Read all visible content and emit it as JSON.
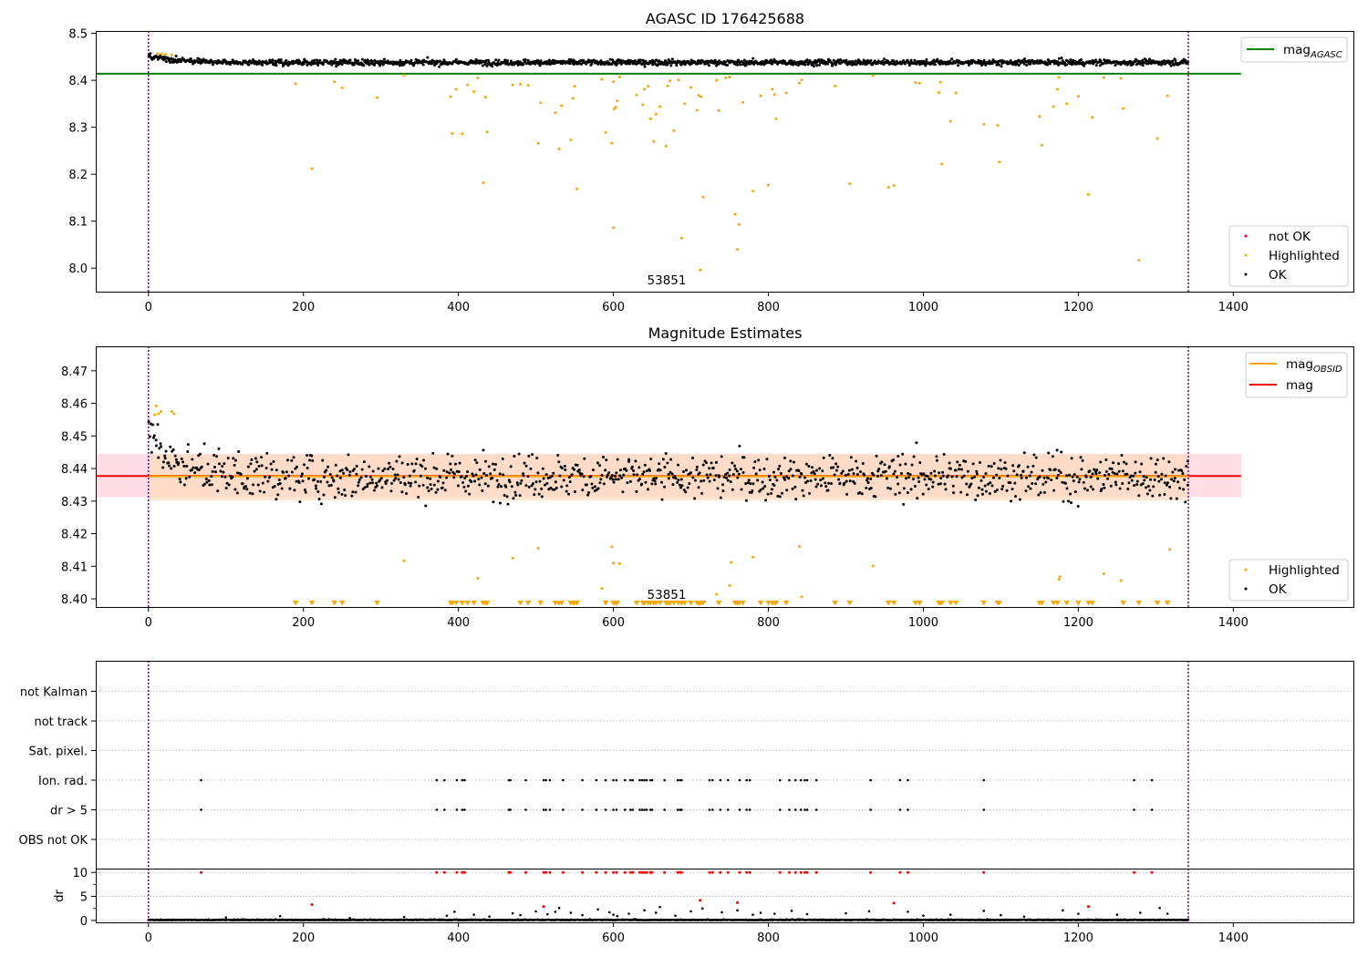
{
  "colors": {
    "ok": "#000000",
    "highlighted": "#ffa500",
    "not_ok": "#ff0000",
    "mag_agasc_line": "#008000",
    "mag_line": "#ff0000",
    "mag_obsid_line": "#ffa500",
    "obs_boundary": "#800080",
    "band_mag": "#ffc0cb",
    "band_obsid": "#ffdab9",
    "grid": "#b0b0b0"
  },
  "chart_data": [
    {
      "type": "scatter",
      "title": "AGASC ID 176425688",
      "xlabel": "",
      "ylabel": "",
      "xlim": [
        -68,
        1555
      ],
      "ylim": [
        7.95,
        8.505
      ],
      "xticks": [
        0,
        200,
        400,
        600,
        800,
        1000,
        1200,
        1400
      ],
      "xtick_labels": [
        "0",
        "200",
        "400",
        "600",
        "800",
        "1000",
        "1200",
        "1400"
      ],
      "yticks": [
        8.0,
        8.1,
        8.2,
        8.3,
        8.4,
        8.5
      ],
      "ytick_labels": [
        "8.0",
        "8.1",
        "8.2",
        "8.3",
        "8.4",
        "8.5"
      ],
      "obs_boundaries": [
        0,
        1342
      ],
      "obsid_label": {
        "text": "53851",
        "x": 671,
        "y": 7.97
      },
      "mag_agasc": {
        "value": 8.414,
        "x_range": [
          -68,
          1410
        ]
      },
      "legend_lines": [
        {
          "label": "mag",
          "subscript": "AGASC",
          "color_key": "mag_agasc_line"
        }
      ],
      "legend_points": [
        {
          "label": "not OK",
          "color_key": "not_ok"
        },
        {
          "label": "Highlighted",
          "color_key": "highlighted"
        },
        {
          "label": "OK",
          "color_key": "ok"
        }
      ],
      "ok_trend": {
        "start": 8.451,
        "end": 8.438,
        "decay": 35,
        "spread": 0.005,
        "x_range": [
          0,
          1342
        ]
      },
      "highlighted_points": [
        [
          12,
          8.457
        ],
        [
          17,
          8.456
        ],
        [
          22,
          8.455
        ],
        [
          30,
          8.454
        ],
        [
          190,
          8.393
        ],
        [
          211,
          8.212
        ],
        [
          240,
          8.397
        ],
        [
          250,
          8.384
        ],
        [
          295,
          8.363
        ],
        [
          330,
          8.411
        ],
        [
          390,
          8.365
        ],
        [
          392,
          8.287
        ],
        [
          397,
          8.381
        ],
        [
          405,
          8.286
        ],
        [
          412,
          8.39
        ],
        [
          420,
          8.376
        ],
        [
          425,
          8.405
        ],
        [
          432,
          8.182
        ],
        [
          435,
          8.364
        ],
        [
          437,
          8.29
        ],
        [
          470,
          8.39
        ],
        [
          480,
          8.392
        ],
        [
          490,
          8.389
        ],
        [
          503,
          8.266
        ],
        [
          506,
          8.352
        ],
        [
          525,
          8.331
        ],
        [
          530,
          8.254
        ],
        [
          533,
          8.346
        ],
        [
          545,
          8.273
        ],
        [
          548,
          8.362
        ],
        [
          550,
          8.387
        ],
        [
          553,
          8.169
        ],
        [
          585,
          8.402
        ],
        [
          590,
          8.289
        ],
        [
          598,
          8.266
        ],
        [
          600,
          8.397
        ],
        [
          600,
          8.086
        ],
        [
          601,
          8.339
        ],
        [
          603,
          8.343
        ],
        [
          605,
          8.356
        ],
        [
          608,
          8.407
        ],
        [
          630,
          8.369
        ],
        [
          638,
          8.348
        ],
        [
          640,
          8.381
        ],
        [
          645,
          8.387
        ],
        [
          648,
          8.318
        ],
        [
          652,
          8.27
        ],
        [
          655,
          8.328
        ],
        [
          660,
          8.344
        ],
        [
          668,
          8.26
        ],
        [
          670,
          8.388
        ],
        [
          673,
          8.399
        ],
        [
          678,
          8.293
        ],
        [
          684,
          8.401
        ],
        [
          688,
          8.064
        ],
        [
          692,
          8.35
        ],
        [
          700,
          8.385
        ],
        [
          708,
          8.336
        ],
        [
          710,
          8.368
        ],
        [
          712,
          7.996
        ],
        [
          713,
          8.365
        ],
        [
          716,
          8.151
        ],
        [
          733,
          8.4
        ],
        [
          736,
          8.336
        ],
        [
          745,
          8.405
        ],
        [
          750,
          8.407
        ],
        [
          757,
          8.115
        ],
        [
          760,
          8.04
        ],
        [
          762,
          8.093
        ],
        [
          767,
          8.353
        ],
        [
          780,
          8.164
        ],
        [
          790,
          8.367
        ],
        [
          800,
          8.177
        ],
        [
          805,
          8.381
        ],
        [
          808,
          8.37
        ],
        [
          810,
          8.318
        ],
        [
          823,
          8.373
        ],
        [
          840,
          8.394
        ],
        [
          843,
          8.401
        ],
        [
          886,
          8.388
        ],
        [
          905,
          8.18
        ],
        [
          935,
          8.41
        ],
        [
          955,
          8.172
        ],
        [
          962,
          8.176
        ],
        [
          990,
          8.395
        ],
        [
          995,
          8.394
        ],
        [
          1020,
          8.374
        ],
        [
          1022,
          8.396
        ],
        [
          1024,
          8.222
        ],
        [
          1035,
          8.313
        ],
        [
          1042,
          8.373
        ],
        [
          1078,
          8.306
        ],
        [
          1096,
          8.304
        ],
        [
          1098,
          8.226
        ],
        [
          1150,
          8.323
        ],
        [
          1153,
          8.262
        ],
        [
          1168,
          8.344
        ],
        [
          1173,
          8.381
        ],
        [
          1175,
          8.406
        ],
        [
          1185,
          8.35
        ],
        [
          1200,
          8.366
        ],
        [
          1213,
          8.157
        ],
        [
          1218,
          8.321
        ],
        [
          1233,
          8.406
        ],
        [
          1255,
          8.404
        ],
        [
          1258,
          8.34
        ],
        [
          1278,
          8.017
        ],
        [
          1302,
          8.276
        ],
        [
          1315,
          8.367
        ]
      ],
      "not_ok_points": []
    },
    {
      "type": "scatter",
      "title": "Magnitude Estimates",
      "xlabel": "",
      "ylabel": "",
      "xlim": [
        -68,
        1555
      ],
      "ylim": [
        8.3975,
        8.4775
      ],
      "xticks": [
        0,
        200,
        400,
        600,
        800,
        1000,
        1200,
        1400
      ],
      "xtick_labels": [
        "0",
        "200",
        "400",
        "600",
        "800",
        "1000",
        "1200",
        "1400"
      ],
      "yticks": [
        8.4,
        8.41,
        8.42,
        8.43,
        8.44,
        8.45,
        8.46,
        8.47
      ],
      "ytick_labels": [
        "8.40",
        "8.41",
        "8.42",
        "8.43",
        "8.44",
        "8.45",
        "8.46",
        "8.47"
      ],
      "obs_boundaries": [
        0,
        1342
      ],
      "obsid_label": {
        "text": "53851",
        "x": 671,
        "y": 8.4005
      },
      "mag": {
        "value": 8.4377,
        "band": [
          8.4312,
          8.4445
        ],
        "x_range": [
          -68,
          1410
        ]
      },
      "mag_obsid": {
        "value": 8.4376,
        "band": [
          8.4302,
          8.4443
        ],
        "x_range": [
          0,
          1342
        ]
      },
      "legend_lines": [
        {
          "label": "mag",
          "subscript": "OBSID",
          "color_key": "mag_obsid_line"
        },
        {
          "label": "mag",
          "subscript": "",
          "color_key": "mag_line"
        }
      ],
      "legend_points": [
        {
          "label": "Highlighted",
          "color_key": "highlighted"
        },
        {
          "label": "OK",
          "color_key": "ok"
        }
      ],
      "ok_trend": {
        "start": 8.451,
        "end": 8.4375,
        "decay": 35,
        "spread": 0.0058,
        "x_range": [
          0,
          1342
        ]
      },
      "highlighted_points": [
        [
          8,
          8.4565
        ],
        [
          10,
          8.4592
        ],
        [
          13,
          8.4568
        ],
        [
          16,
          8.4575
        ],
        [
          30,
          8.4575
        ],
        [
          33,
          8.4568
        ],
        [
          330,
          8.4117
        ],
        [
          425,
          8.4063
        ],
        [
          470,
          8.4125
        ],
        [
          503,
          8.4155
        ],
        [
          585,
          8.4032
        ],
        [
          598,
          8.416
        ],
        [
          600,
          8.411
        ],
        [
          608,
          8.4108
        ],
        [
          733,
          8.4014
        ],
        [
          750,
          8.4041
        ],
        [
          752,
          8.4112
        ],
        [
          780,
          8.4128
        ],
        [
          840,
          8.4161
        ],
        [
          843,
          8.4006
        ],
        [
          935,
          8.4101
        ],
        [
          1175,
          8.406
        ],
        [
          1176,
          8.4068
        ],
        [
          1233,
          8.4077
        ],
        [
          1255,
          8.4056
        ],
        [
          1318,
          8.4152
        ]
      ],
      "clipped_markers_x": [
        190,
        211,
        240,
        250,
        295,
        390,
        392,
        397,
        405,
        412,
        420,
        432,
        435,
        437,
        480,
        490,
        506,
        525,
        530,
        533,
        545,
        548,
        550,
        553,
        590,
        600,
        601,
        603,
        605,
        630,
        638,
        640,
        645,
        648,
        652,
        655,
        660,
        668,
        670,
        673,
        678,
        684,
        688,
        692,
        700,
        708,
        710,
        712,
        713,
        716,
        736,
        757,
        760,
        762,
        767,
        790,
        800,
        805,
        808,
        810,
        823,
        886,
        905,
        955,
        962,
        990,
        995,
        1020,
        1022,
        1024,
        1035,
        1042,
        1078,
        1096,
        1098,
        1150,
        1153,
        1168,
        1173,
        1185,
        1200,
        1213,
        1218,
        1258,
        1278,
        1302,
        1315
      ]
    },
    {
      "type": "scatter",
      "title": "",
      "xlabel": "",
      "ylabel": "",
      "xlim": [
        -68,
        1555
      ],
      "flag_rows": [
        "not Kalman",
        "not track",
        "Sat. pixel.",
        "Ion. rad.",
        "dr > 5",
        "OBS not OK"
      ],
      "flag_rows_with_points": [
        "Ion. rad.",
        "dr > 5"
      ],
      "flag_points_x": [
        68,
        372,
        382,
        398,
        405,
        408,
        465,
        467,
        487,
        510,
        513,
        518,
        535,
        560,
        578,
        590,
        600,
        604,
        615,
        622,
        625,
        634,
        637,
        640,
        643,
        648,
        650,
        666,
        683,
        686,
        688,
        724,
        728,
        738,
        748,
        763,
        772,
        776,
        815,
        827,
        835,
        842,
        847,
        850,
        862,
        932,
        970,
        980,
        1078,
        1272,
        1295
      ],
      "obs_boundaries": [
        0,
        1342
      ]
    },
    {
      "type": "scatter",
      "title": "",
      "xlabel": "",
      "ylabel": "dr",
      "xlim": [
        -68,
        1555
      ],
      "ylim": [
        -0.4,
        10.8
      ],
      "yticks": [
        0,
        5,
        10
      ],
      "ytick_labels": [
        "0",
        "5",
        "10"
      ],
      "xticks": [
        0,
        200,
        400,
        600,
        800,
        1000,
        1200,
        1400
      ],
      "xtick_labels": [
        "0",
        "200",
        "400",
        "600",
        "800",
        "1000",
        "1200",
        "1400"
      ],
      "obs_boundaries": [
        0,
        1342
      ],
      "clip_value": 10,
      "red_clipped_x": [
        68,
        372,
        382,
        398,
        405,
        408,
        465,
        467,
        487,
        510,
        513,
        518,
        535,
        560,
        578,
        590,
        600,
        604,
        615,
        622,
        625,
        634,
        637,
        640,
        643,
        648,
        650,
        666,
        683,
        686,
        688,
        724,
        728,
        738,
        748,
        763,
        772,
        776,
        815,
        827,
        835,
        842,
        847,
        850,
        862,
        932,
        970,
        980,
        1078,
        1272,
        1295
      ],
      "red_points": [
        [
          211,
          3.3
        ],
        [
          510,
          2.9
        ],
        [
          712,
          4.2
        ],
        [
          760,
          3.7
        ],
        [
          962,
          3.6
        ],
        [
          1213,
          2.9
        ]
      ],
      "ok_scatter_points": [
        [
          100,
          0.6
        ],
        [
          170,
          0.9
        ],
        [
          260,
          0.5
        ],
        [
          330,
          0.7
        ],
        [
          385,
          1.0
        ],
        [
          395,
          1.8
        ],
        [
          420,
          1.2
        ],
        [
          440,
          0.8
        ],
        [
          470,
          1.5
        ],
        [
          480,
          1.1
        ],
        [
          500,
          1.9
        ],
        [
          515,
          1.3
        ],
        [
          525,
          1.8
        ],
        [
          530,
          2.6
        ],
        [
          545,
          1.6
        ],
        [
          560,
          1.1
        ],
        [
          580,
          2.3
        ],
        [
          595,
          1.7
        ],
        [
          600,
          1.2
        ],
        [
          605,
          0.9
        ],
        [
          620,
          1.4
        ],
        [
          640,
          2.1
        ],
        [
          655,
          1.6
        ],
        [
          660,
          2.8
        ],
        [
          680,
          1.0
        ],
        [
          700,
          1.9
        ],
        [
          715,
          2.5
        ],
        [
          740,
          1.7
        ],
        [
          760,
          2.1
        ],
        [
          780,
          1.2
        ],
        [
          790,
          1.6
        ],
        [
          808,
          1.4
        ],
        [
          830,
          2.0
        ],
        [
          850,
          1.3
        ],
        [
          900,
          1.5
        ],
        [
          930,
          1.9
        ],
        [
          980,
          1.8
        ],
        [
          1000,
          1.0
        ],
        [
          1035,
          1.2
        ],
        [
          1078,
          2.0
        ],
        [
          1100,
          1.1
        ],
        [
          1130,
          0.8
        ],
        [
          1180,
          2.1
        ],
        [
          1200,
          1.4
        ],
        [
          1250,
          1.2
        ],
        [
          1280,
          1.6
        ],
        [
          1305,
          2.6
        ],
        [
          1315,
          1.4
        ]
      ]
    }
  ]
}
